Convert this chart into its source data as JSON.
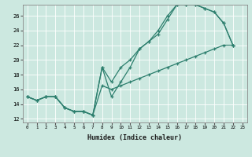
{
  "title": "",
  "xlabel": "Humidex (Indice chaleur)",
  "background_color": "#cce8e0",
  "line_color": "#2d7f6e",
  "grid_color": "#b0d8ce",
  "xlim": [
    -0.5,
    23.5
  ],
  "ylim": [
    11.5,
    27.5
  ],
  "xticks": [
    0,
    1,
    2,
    3,
    4,
    5,
    6,
    7,
    8,
    9,
    10,
    11,
    12,
    13,
    14,
    15,
    16,
    17,
    18,
    19,
    20,
    21,
    22,
    23
  ],
  "yticks": [
    12,
    14,
    16,
    18,
    20,
    22,
    24,
    26
  ],
  "series": [
    {
      "x": [
        0,
        1,
        2,
        3,
        4,
        5,
        6,
        7,
        8,
        9,
        10,
        11,
        12,
        13,
        14,
        15,
        16,
        17,
        18,
        19,
        20,
        21,
        22
      ],
      "y": [
        15,
        14.5,
        15,
        15,
        13.5,
        13,
        13,
        12.5,
        19,
        15,
        17,
        19,
        21.5,
        22.5,
        23.5,
        25.5,
        27.5,
        27.5,
        27.5,
        27.0,
        26.5,
        25.0,
        22
      ]
    },
    {
      "x": [
        0,
        1,
        2,
        3,
        4,
        5,
        6,
        7,
        8,
        9,
        10,
        11,
        12,
        13,
        14,
        15,
        16,
        17,
        18,
        19,
        20,
        21,
        22
      ],
      "y": [
        15,
        14.5,
        15,
        15,
        13.5,
        13,
        13,
        12.5,
        19,
        17,
        19,
        20,
        21.5,
        22.5,
        24.0,
        26.0,
        27.5,
        27.5,
        27.5,
        27.0,
        26.5,
        25.0,
        22
      ]
    },
    {
      "x": [
        0,
        1,
        2,
        3,
        4,
        5,
        6,
        7,
        8,
        9,
        10,
        11,
        12,
        13,
        14,
        15,
        16,
        17,
        18,
        19,
        20,
        21,
        22
      ],
      "y": [
        15,
        14.5,
        15,
        15,
        13.5,
        13,
        13,
        12.5,
        16.5,
        16,
        16.5,
        17.0,
        17.5,
        18.0,
        18.5,
        19.0,
        19.5,
        20.0,
        20.5,
        21.0,
        21.5,
        22.0,
        22
      ]
    }
  ]
}
